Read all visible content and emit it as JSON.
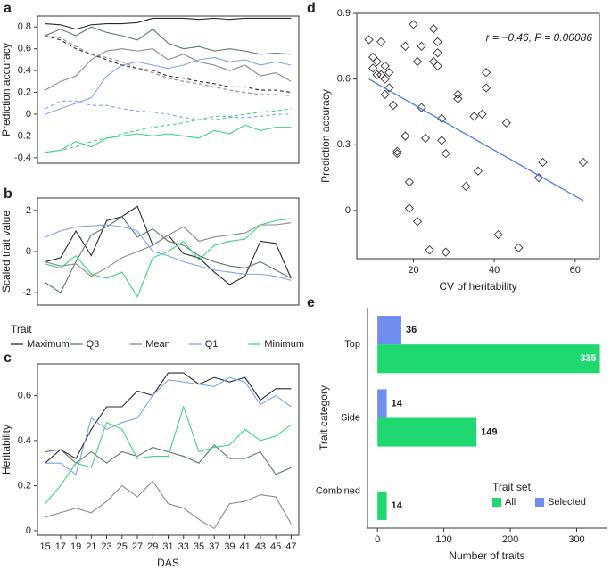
{
  "chart_data": [
    {
      "type": "line",
      "panel_label": "a",
      "y_label": "Prediction accuracy",
      "x": [
        15,
        17,
        19,
        21,
        23,
        25,
        27,
        29,
        31,
        33,
        35,
        37,
        39,
        41,
        43,
        45,
        47
      ],
      "xlim": [
        14,
        48
      ],
      "ylim": [
        -0.45,
        0.9
      ],
      "yticks": [
        -0.4,
        -0.2,
        0,
        0.2,
        0.4,
        0.6,
        0.8
      ],
      "series": [
        {
          "color": "#2a2a2a",
          "dash": false,
          "values": [
            0.83,
            0.82,
            0.78,
            0.82,
            0.83,
            0.83,
            0.84,
            0.88,
            0.88,
            0.88,
            0.87,
            0.88,
            0.87,
            0.88,
            0.88,
            0.88,
            0.88
          ]
        },
        {
          "color": "#5c7a6a",
          "dash": false,
          "values": [
            0.72,
            0.78,
            0.72,
            0.8,
            0.75,
            0.72,
            0.68,
            0.78,
            0.65,
            0.6,
            0.62,
            0.58,
            0.6,
            0.58,
            0.55,
            0.56,
            0.55
          ]
        },
        {
          "color": "#8a8a8a",
          "dash": false,
          "values": [
            0.22,
            0.3,
            0.35,
            0.5,
            0.58,
            0.6,
            0.58,
            0.6,
            0.5,
            0.55,
            0.48,
            0.45,
            0.4,
            0.45,
            0.35,
            0.38,
            0.3
          ]
        },
        {
          "color": "#7fa3e8",
          "dash": false,
          "values": [
            0.0,
            0.05,
            0.1,
            0.15,
            0.35,
            0.45,
            0.48,
            0.45,
            0.42,
            0.45,
            0.5,
            0.52,
            0.48,
            0.5,
            0.45,
            0.48,
            0.45
          ]
        },
        {
          "color": "#3dd47a",
          "dash": false,
          "values": [
            -0.35,
            -0.33,
            -0.25,
            -0.3,
            -0.22,
            -0.2,
            -0.18,
            -0.2,
            -0.18,
            -0.2,
            -0.22,
            -0.15,
            -0.18,
            -0.1,
            -0.15,
            -0.12,
            -0.12
          ]
        },
        {
          "color": "#2a2a2a",
          "dash": true,
          "values": [
            0.72,
            0.68,
            0.6,
            0.55,
            0.5,
            0.45,
            0.42,
            0.4,
            0.35,
            0.33,
            0.3,
            0.28,
            0.25,
            0.25,
            0.22,
            0.22,
            0.2
          ]
        },
        {
          "color": "#8a8a8a",
          "dash": true,
          "values": [
            0.72,
            0.7,
            0.62,
            0.55,
            0.52,
            0.48,
            0.42,
            0.38,
            0.33,
            0.3,
            0.28,
            0.25,
            0.22,
            0.2,
            0.18,
            0.18,
            0.17
          ]
        },
        {
          "color": "#7fa3e8",
          "dash": true,
          "values": [
            0.05,
            0.12,
            0.12,
            0.08,
            0.08,
            0.05,
            0.03,
            0.02,
            0.0,
            -0.03,
            -0.05,
            -0.05,
            -0.03,
            -0.03,
            -0.02,
            0.0,
            0.0
          ]
        },
        {
          "color": "#3dd47a",
          "dash": true,
          "values": [
            -0.35,
            -0.33,
            -0.3,
            -0.25,
            -0.22,
            -0.18,
            -0.15,
            -0.12,
            -0.1,
            -0.08,
            -0.05,
            -0.02,
            -0.02,
            0.0,
            0.02,
            0.03,
            0.05
          ]
        }
      ]
    },
    {
      "type": "line",
      "panel_label": "b",
      "y_label": "Scaled trait value",
      "legend_title": "Trait",
      "x": [
        15,
        17,
        19,
        21,
        23,
        25,
        27,
        29,
        31,
        33,
        35,
        37,
        39,
        41,
        43,
        45,
        47
      ],
      "xlim": [
        14,
        48
      ],
      "ylim": [
        -2.6,
        2.6
      ],
      "yticks": [
        -2,
        0,
        2
      ],
      "series": [
        {
          "name": "Maximum",
          "color": "#2a2a2a",
          "values": [
            -0.5,
            -0.3,
            1.0,
            -0.2,
            1.5,
            1.7,
            2.2,
            0.3,
            0.8,
            -0.1,
            -0.3,
            -1.0,
            -1.6,
            -1.2,
            0.5,
            0.4,
            -1.3
          ]
        },
        {
          "name": "Q3",
          "color": "#5c7a6a",
          "values": [
            -1.5,
            -2.0,
            -0.5,
            0.8,
            1.2,
            1.7,
            0.7,
            1.1,
            0.5,
            0.3,
            -0.2,
            -0.5,
            -0.7,
            -0.8,
            -0.5,
            -0.9,
            -1.3
          ]
        },
        {
          "name": "Mean",
          "color": "#8a8a8a",
          "values": [
            -0.5,
            -0.7,
            -0.6,
            -1.2,
            -0.8,
            -0.3,
            0.0,
            0.3,
            0.8,
            1.2,
            0.5,
            0.7,
            0.8,
            0.9,
            1.3,
            1.3,
            1.4
          ]
        },
        {
          "name": "Q1",
          "color": "#7fa3e8",
          "values": [
            0.7,
            1.0,
            1.2,
            1.25,
            1.3,
            1.2,
            1.0,
            0.0,
            -0.2,
            -0.5,
            -0.7,
            -0.9,
            -1.0,
            -1.1,
            -1.1,
            -1.2,
            -1.4
          ]
        },
        {
          "name": "Minimum",
          "color": "#3dd47a",
          "values": [
            -0.6,
            -0.8,
            -0.2,
            -1.1,
            -1.3,
            -1.0,
            -2.2,
            -0.3,
            0.0,
            0.5,
            -0.4,
            0.3,
            0.5,
            0.6,
            1.3,
            1.5,
            1.6
          ]
        }
      ]
    },
    {
      "type": "line",
      "panel_label": "c",
      "y_label": "Heritability",
      "x_label": "DAS",
      "x": [
        15,
        17,
        19,
        21,
        23,
        25,
        27,
        29,
        31,
        33,
        35,
        37,
        39,
        41,
        43,
        45,
        47
      ],
      "xlim": [
        14,
        48
      ],
      "xticks": [
        15,
        17,
        19,
        21,
        23,
        25,
        27,
        29,
        31,
        33,
        35,
        37,
        39,
        41,
        43,
        45,
        47
      ],
      "ylim": [
        -0.02,
        0.74
      ],
      "yticks": [
        0,
        0.2,
        0.4,
        0.6
      ],
      "series": [
        {
          "color": "#2a2a2a",
          "values": [
            0.3,
            0.36,
            0.32,
            0.45,
            0.55,
            0.55,
            0.62,
            0.6,
            0.7,
            0.7,
            0.65,
            0.68,
            0.66,
            0.68,
            0.58,
            0.63,
            0.63
          ]
        },
        {
          "color": "#5c7a6a",
          "values": [
            0.35,
            0.36,
            0.3,
            0.35,
            0.3,
            0.35,
            0.33,
            0.37,
            0.35,
            0.33,
            0.3,
            0.38,
            0.32,
            0.32,
            0.35,
            0.25,
            0.28
          ]
        },
        {
          "color": "#8a8a8a",
          "values": [
            0.06,
            0.08,
            0.1,
            0.08,
            0.13,
            0.2,
            0.15,
            0.22,
            0.12,
            0.1,
            0.05,
            0.01,
            0.12,
            0.13,
            0.16,
            0.15,
            0.03
          ]
        },
        {
          "color": "#7fa3e8",
          "values": [
            0.3,
            0.3,
            0.25,
            0.5,
            0.45,
            0.48,
            0.5,
            0.6,
            0.67,
            0.66,
            0.65,
            0.64,
            0.68,
            0.66,
            0.56,
            0.6,
            0.55
          ]
        },
        {
          "color": "#3dd47a",
          "values": [
            0.12,
            0.2,
            0.3,
            0.28,
            0.48,
            0.45,
            0.32,
            0.33,
            0.33,
            0.55,
            0.35,
            0.37,
            0.38,
            0.45,
            0.4,
            0.42,
            0.47
          ]
        }
      ]
    },
    {
      "type": "scatter",
      "panel_label": "d",
      "y_label": "Prediction accuracy",
      "x_label": "CV of heritability",
      "annotation": "r = −0.46, P = 0.00086",
      "xlim": [
        6,
        66
      ],
      "xticks": [
        20,
        40,
        60
      ],
      "ylim": [
        -0.22,
        0.9
      ],
      "yticks": [
        0,
        0.3,
        0.6,
        0.9
      ],
      "x": [
        9,
        10,
        11,
        10,
        12,
        11,
        13,
        13,
        12,
        14,
        14,
        13,
        15,
        16,
        16,
        18,
        18,
        19,
        19,
        20,
        21,
        21,
        22,
        22,
        23,
        24,
        25,
        25,
        26,
        26,
        26,
        27,
        27,
        28,
        28,
        31,
        31,
        33,
        35,
        36,
        37,
        38,
        38,
        41,
        43,
        46,
        51,
        52,
        62
      ],
      "values": [
        0.78,
        0.7,
        0.68,
        0.65,
        0.62,
        0.62,
        0.66,
        0.6,
        0.77,
        0.63,
        0.56,
        0.53,
        0.48,
        0.27,
        0.26,
        0.34,
        0.75,
        0.01,
        0.13,
        0.85,
        0.68,
        -0.05,
        0.47,
        0.75,
        0.33,
        -0.18,
        0.83,
        0.68,
        0.77,
        0.72,
        0.66,
        0.42,
        0.32,
        0.26,
        -0.19,
        0.51,
        0.53,
        0.11,
        0.43,
        0.18,
        0.44,
        0.63,
        0.56,
        -0.11,
        0.4,
        -0.17,
        0.15,
        0.22,
        0.22
      ],
      "trendline": {
        "color": "#4a7fd6",
        "x": [
          9,
          62
        ],
        "y": [
          0.6,
          0.045
        ]
      }
    },
    {
      "type": "hbar",
      "panel_label": "e",
      "y_label": "Trait category",
      "x_label": "Number of traits",
      "legend_title": "Trait set",
      "categories": [
        "Top",
        "Side",
        "Combined"
      ],
      "xlim": [
        -15,
        345
      ],
      "xticks": [
        0,
        100,
        200,
        300
      ],
      "series": [
        {
          "name": "All",
          "color": "#1fd870",
          "values": [
            335,
            149,
            14
          ]
        },
        {
          "name": "Selected",
          "color": "#6e8ef0",
          "values": [
            36,
            14,
            null
          ]
        }
      ]
    }
  ]
}
